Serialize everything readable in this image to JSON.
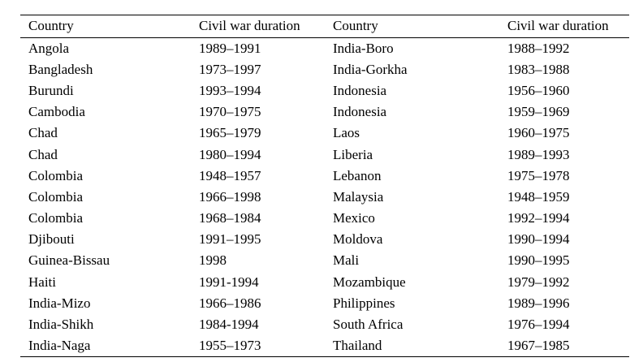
{
  "table": {
    "headers": [
      "Country",
      "Civil war duration",
      "Country",
      "Civil war duration"
    ],
    "rows": [
      [
        "Angola",
        "1989–1991",
        "India-Boro",
        "1988–1992"
      ],
      [
        "Bangladesh",
        "1973–1997",
        "India-Gorkha",
        "1983–1988"
      ],
      [
        "Burundi",
        "1993–1994",
        "Indonesia",
        "1956–1960"
      ],
      [
        "Cambodia",
        "1970–1975",
        "Indonesia",
        "1959–1969"
      ],
      [
        "Chad",
        "1965–1979",
        "Laos",
        "1960–1975"
      ],
      [
        "Chad",
        "1980–1994",
        "Liberia",
        "1989–1993"
      ],
      [
        "Colombia",
        "1948–1957",
        "Lebanon",
        "1975–1978"
      ],
      [
        "Colombia",
        "1966–1998",
        "Malaysia",
        "1948–1959"
      ],
      [
        "Colombia",
        "1968–1984",
        "Mexico",
        "1992–1994"
      ],
      [
        "Djibouti",
        "1991–1995",
        "Moldova",
        "1990–1994"
      ],
      [
        "Guinea-Bissau",
        "1998",
        "Mali",
        "1990–1995"
      ],
      [
        "Haiti",
        "1991-1994",
        "Mozambique",
        "1979–1992"
      ],
      [
        "India-Mizo",
        "1966–1986",
        "Philippines",
        "1989–1996"
      ],
      [
        "India-Shikh",
        "1984-1994",
        "South Africa",
        "1976–1994"
      ],
      [
        "India-Naga",
        "1955–1973",
        "Thailand",
        "1967–1985"
      ]
    ]
  },
  "colors": {
    "text": "#000000",
    "background": "#ffffff",
    "rule": "#000000"
  }
}
